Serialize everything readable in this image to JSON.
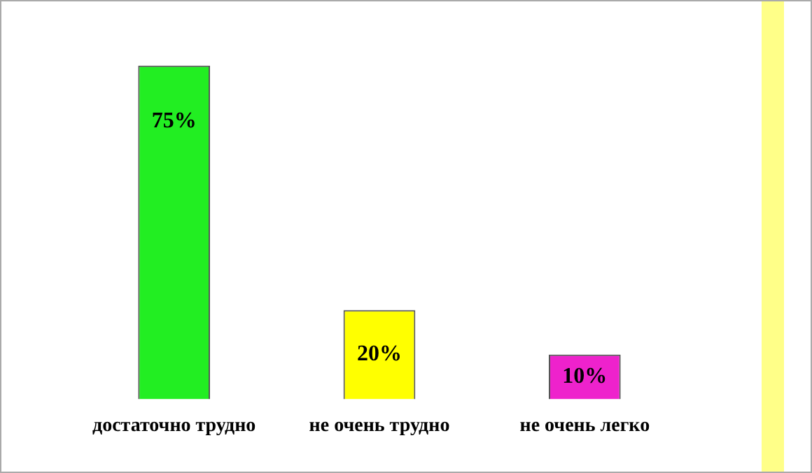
{
  "chart_data": {
    "type": "bar",
    "categories": [
      "достаточно трудно",
      "не очень трудно",
      "не очень легко"
    ],
    "values": [
      75,
      20,
      10
    ],
    "colors": [
      "#22ee22",
      "#ffff00",
      "#ee22cc"
    ],
    "value_labels": [
      "75%",
      "20%",
      "10%"
    ],
    "grid": false,
    "legend": false
  }
}
